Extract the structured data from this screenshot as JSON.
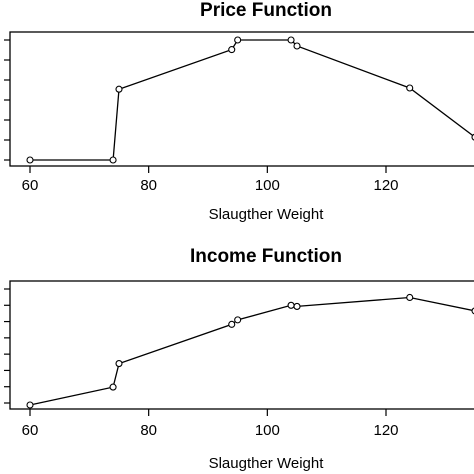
{
  "chart_data": [
    {
      "type": "line",
      "title": "Price Function",
      "xlabel": "Slaugther Weight",
      "ylabel": "",
      "xlim": [
        55,
        135
      ],
      "ylim": [
        0,
        1
      ],
      "xticks": [
        "60",
        "80",
        "100",
        "120"
      ],
      "xtick_values": [
        60,
        80,
        100,
        120
      ],
      "yticks_count": 7,
      "x": [
        60,
        74,
        75,
        94,
        95,
        104,
        105,
        124,
        135
      ],
      "y": [
        0.0,
        0.0,
        0.59,
        0.92,
        1.0,
        1.0,
        0.95,
        0.6,
        0.19
      ],
      "grid": false
    },
    {
      "type": "line",
      "title": "Income Function",
      "xlabel": "Slaugther Weight",
      "ylabel": "",
      "xlim": [
        55,
        135
      ],
      "ylim": [
        0,
        1
      ],
      "xticks": [
        "60",
        "80",
        "100",
        "120"
      ],
      "xtick_values": [
        60,
        80,
        100,
        120
      ],
      "yticks_count": 8,
      "x": [
        60,
        74,
        75,
        94,
        95,
        104,
        105,
        124,
        135
      ],
      "y": [
        0.0,
        0.16,
        0.37,
        0.72,
        0.76,
        0.89,
        0.88,
        0.96,
        0.84
      ],
      "grid": false
    }
  ]
}
